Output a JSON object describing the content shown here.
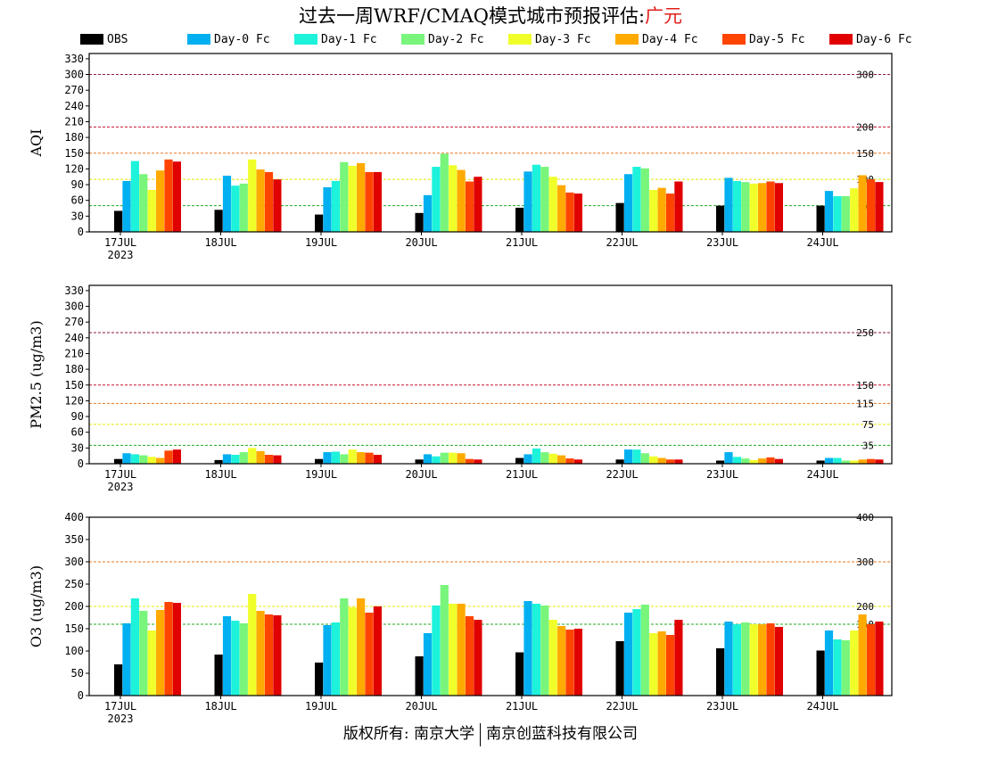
{
  "title": {
    "text": "过去一周WRF/CMAQ模式城市预报评估:",
    "city": "广元"
  },
  "footer": {
    "left": "版权所有: 南京大学",
    "right": "南京创蓝科技有限公司"
  },
  "legend": [
    {
      "name": "OBS",
      "color": "#000000"
    },
    {
      "name": "Day-0 Fc",
      "color": "#00b0f0"
    },
    {
      "name": "Day-1 Fc",
      "color": "#1df2db"
    },
    {
      "name": "Day-2 Fc",
      "color": "#78f57a"
    },
    {
      "name": "Day-3 Fc",
      "color": "#f0ff2a"
    },
    {
      "name": "Day-4 Fc",
      "color": "#ffaa00"
    },
    {
      "name": "Day-5 Fc",
      "color": "#ff4400"
    },
    {
      "name": "Day-6 Fc",
      "color": "#e00000"
    }
  ],
  "chart_data": [
    {
      "type": "bar",
      "ylabel": "AQI",
      "ylim": [
        0,
        340
      ],
      "yticks": [
        0,
        30,
        60,
        90,
        120,
        150,
        180,
        210,
        240,
        270,
        300,
        330
      ],
      "categories": [
        "17JUL",
        "18JUL",
        "19JUL",
        "20JUL",
        "21JUL",
        "22JUL",
        "23JUL",
        "24JUL"
      ],
      "year_label": "2023",
      "thresholds": [
        {
          "value": 300,
          "label": "300",
          "color": "#8b1a3a"
        },
        {
          "value": 200,
          "label": "200",
          "color": "#c8102e"
        },
        {
          "value": 150,
          "label": "150",
          "color": "#e87722"
        },
        {
          "value": 100,
          "label": "100",
          "color": "#e8e800"
        },
        {
          "value": 50,
          "label": "50",
          "color": "#22aa22"
        }
      ],
      "series": [
        {
          "name": "OBS",
          "values": [
            40,
            42,
            33,
            36,
            46,
            55,
            50,
            50
          ]
        },
        {
          "name": "Day-0 Fc",
          "values": [
            97,
            107,
            85,
            70,
            115,
            110,
            103,
            78
          ]
        },
        {
          "name": "Day-1 Fc",
          "values": [
            135,
            88,
            97,
            124,
            128,
            124,
            97,
            68
          ]
        },
        {
          "name": "Day-2 Fc",
          "values": [
            110,
            92,
            133,
            149,
            124,
            121,
            95,
            68
          ]
        },
        {
          "name": "Day-3 Fc",
          "values": [
            80,
            138,
            126,
            127,
            105,
            80,
            92,
            83
          ]
        },
        {
          "name": "Day-4 Fc",
          "values": [
            117,
            119,
            131,
            118,
            89,
            84,
            93,
            108
          ]
        },
        {
          "name": "Day-5 Fc",
          "values": [
            138,
            114,
            114,
            96,
            75,
            73,
            96,
            100
          ]
        },
        {
          "name": "Day-6 Fc",
          "values": [
            134,
            100,
            114,
            105,
            73,
            96,
            93,
            95
          ]
        }
      ]
    },
    {
      "type": "bar",
      "ylabel": "PM2.5 (ug/m3)",
      "ylim": [
        0,
        340
      ],
      "yticks": [
        0,
        30,
        60,
        90,
        120,
        150,
        180,
        210,
        240,
        270,
        300,
        330
      ],
      "categories": [
        "17JUL",
        "18JUL",
        "19JUL",
        "20JUL",
        "21JUL",
        "22JUL",
        "23JUL",
        "24JUL"
      ],
      "year_label": "2023",
      "thresholds": [
        {
          "value": 250,
          "label": "250",
          "color": "#8b1a3a"
        },
        {
          "value": 150,
          "label": "150",
          "color": "#c8102e"
        },
        {
          "value": 115,
          "label": "115",
          "color": "#e87722"
        },
        {
          "value": 75,
          "label": "75",
          "color": "#e8e800"
        },
        {
          "value": 35,
          "label": "35",
          "color": "#22aa22"
        }
      ],
      "series": [
        {
          "name": "OBS",
          "values": [
            9,
            7,
            9,
            8,
            11,
            8,
            6,
            6
          ]
        },
        {
          "name": "Day-0 Fc",
          "values": [
            20,
            18,
            22,
            18,
            18,
            27,
            22,
            11
          ]
        },
        {
          "name": "Day-1 Fc",
          "values": [
            18,
            17,
            23,
            14,
            29,
            27,
            13,
            11
          ]
        },
        {
          "name": "Day-2 Fc",
          "values": [
            16,
            22,
            18,
            21,
            22,
            20,
            10,
            6
          ]
        },
        {
          "name": "Day-3 Fc",
          "values": [
            13,
            30,
            27,
            21,
            19,
            14,
            7,
            6
          ]
        },
        {
          "name": "Day-4 Fc",
          "values": [
            11,
            24,
            22,
            20,
            16,
            11,
            10,
            8
          ]
        },
        {
          "name": "Day-5 Fc",
          "values": [
            25,
            17,
            21,
            9,
            10,
            8,
            12,
            9
          ]
        },
        {
          "name": "Day-6 Fc",
          "values": [
            27,
            16,
            17,
            8,
            8,
            8,
            9,
            8
          ]
        }
      ]
    },
    {
      "type": "bar",
      "ylabel": "O3 (ug/m3)",
      "ylim": [
        0,
        400
      ],
      "yticks": [
        0,
        50,
        100,
        150,
        200,
        250,
        300,
        350,
        400
      ],
      "categories": [
        "17JUL",
        "18JUL",
        "19JUL",
        "20JUL",
        "21JUL",
        "22JUL",
        "23JUL",
        "24JUL"
      ],
      "year_label": "2023",
      "thresholds": [
        {
          "value": 400,
          "label": "400",
          "color": "#c8102e"
        },
        {
          "value": 300,
          "label": "300",
          "color": "#e87722"
        },
        {
          "value": 200,
          "label": "200",
          "color": "#e8e800"
        },
        {
          "value": 160,
          "label": "160",
          "color": "#22aa22"
        }
      ],
      "series": [
        {
          "name": "OBS",
          "values": [
            70,
            92,
            74,
            88,
            97,
            122,
            106,
            101
          ]
        },
        {
          "name": "Day-0 Fc",
          "values": [
            162,
            178,
            158,
            140,
            212,
            186,
            166,
            146
          ]
        },
        {
          "name": "Day-1 Fc",
          "values": [
            218,
            168,
            164,
            202,
            206,
            194,
            160,
            126
          ]
        },
        {
          "name": "Day-2 Fc",
          "values": [
            190,
            162,
            218,
            248,
            202,
            204,
            164,
            124
          ]
        },
        {
          "name": "Day-3 Fc",
          "values": [
            146,
            228,
            198,
            206,
            170,
            140,
            160,
            146
          ]
        },
        {
          "name": "Day-4 Fc",
          "values": [
            192,
            190,
            218,
            206,
            156,
            144,
            160,
            182
          ]
        },
        {
          "name": "Day-5 Fc",
          "values": [
            210,
            182,
            186,
            178,
            148,
            136,
            162,
            160
          ]
        },
        {
          "name": "Day-6 Fc",
          "values": [
            208,
            180,
            200,
            170,
            150,
            170,
            154,
            166
          ]
        }
      ]
    }
  ]
}
